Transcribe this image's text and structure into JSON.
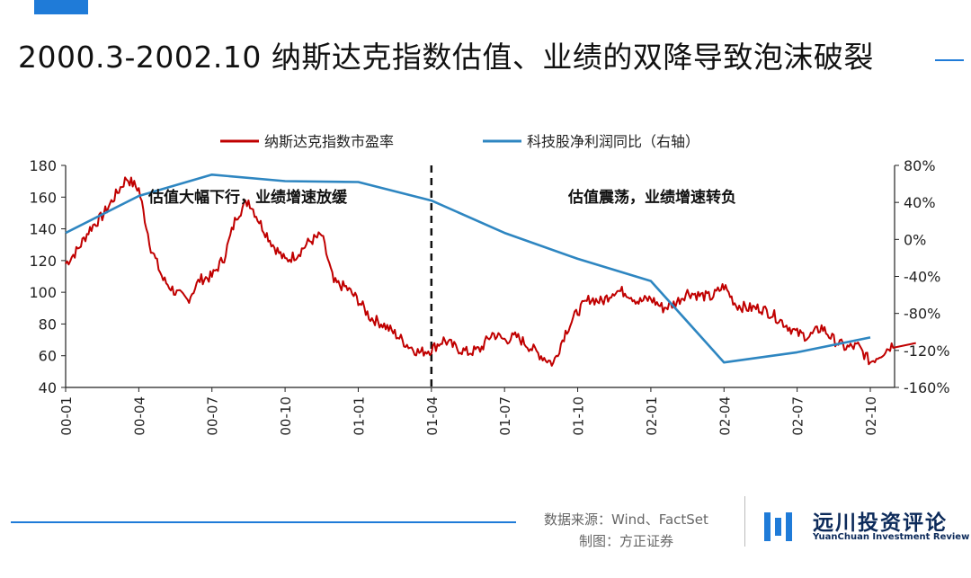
{
  "page": {
    "title": "2000.3-2002.10 纳斯达克指数估值、业绩的双降导致泡沫破裂"
  },
  "footer": {
    "source": "数据来源：Wind、FactSet",
    "maker": "制图：方正证券",
    "brand_name": "远川投资评论",
    "brand_sub": "YuanChuan Investment Review"
  },
  "colors": {
    "accent": "#1f7bd8",
    "pe_series": "#c00000",
    "growth_series": "#2e86c1",
    "brand": "#0c2a5a"
  },
  "chart_data": {
    "type": "line",
    "x_tick_labels": [
      "00-01",
      "00-04",
      "00-07",
      "00-10",
      "01-01",
      "01-04",
      "01-07",
      "01-10",
      "02-01",
      "02-04",
      "02-07",
      "02-10"
    ],
    "left_axis": {
      "ylim": [
        40,
        180
      ],
      "ticks": [
        40,
        60,
        80,
        100,
        120,
        140,
        160,
        180
      ]
    },
    "right_axis": {
      "ylim": [
        -160,
        80
      ],
      "ticks": [
        "80%",
        "40%",
        "0%",
        "-40%",
        "-80%",
        "-120%",
        "-160%"
      ]
    },
    "grid": false,
    "legend_position": "top",
    "annotations": [
      {
        "text": "估值大幅下行，业绩增速放缓",
        "x": "00-05"
      },
      {
        "text": "估值震荡，业绩增速转负",
        "x": "01-06"
      }
    ],
    "divider_x": "01-04",
    "series": [
      {
        "name": "纳斯达克指数市盈率",
        "axis": "left",
        "x": [
          "00-01",
          "00-01",
          "00-02",
          "00-02",
          "00-03",
          "00-03",
          "00-04",
          "00-04",
          "00-05",
          "00-05",
          "00-06",
          "00-06",
          "00-07",
          "00-07",
          "00-08",
          "00-08",
          "00-09",
          "00-09",
          "00-10",
          "00-10",
          "00-11",
          "00-11",
          "00-12",
          "00-12",
          "01-01",
          "01-01",
          "01-02",
          "01-02",
          "01-03",
          "01-03",
          "01-04",
          "01-04",
          "01-05",
          "01-05",
          "01-06",
          "01-06",
          "01-07",
          "01-07",
          "01-08",
          "01-08",
          "01-09",
          "01-09",
          "01-10",
          "01-10",
          "01-11",
          "01-11",
          "01-12",
          "01-12",
          "02-01",
          "02-01",
          "02-02",
          "02-02",
          "02-03",
          "02-03",
          "02-04",
          "02-04",
          "02-05",
          "02-05",
          "02-06",
          "02-06",
          "02-07",
          "02-07",
          "02-08",
          "02-08",
          "02-09",
          "02-09",
          "02-10",
          "02-10",
          "02-11"
        ],
        "values": [
          118,
          127,
          140,
          148,
          160,
          172,
          165,
          128,
          108,
          100,
          95,
          108,
          110,
          122,
          148,
          158,
          143,
          130,
          120,
          124,
          132,
          136,
          106,
          103,
          95,
          84,
          80,
          74,
          67,
          62,
          64,
          70,
          65,
          62,
          64,
          74,
          70,
          72,
          66,
          60,
          55,
          75,
          88,
          96,
          94,
          101,
          100,
          94,
          96,
          90,
          93,
          100,
          98,
          97,
          104,
          92,
          90,
          90,
          86,
          80,
          74,
          72,
          78,
          70,
          65,
          66,
          56,
          62,
          68
        ]
      },
      {
        "name": "科技股净利润同比（右轴）",
        "axis": "right",
        "x": [
          "00-01",
          "00-04",
          "00-07",
          "00-10",
          "01-01",
          "01-04",
          "01-07",
          "01-10",
          "02-01",
          "02-04",
          "02-07",
          "02-10"
        ],
        "values": [
          7,
          47,
          70,
          63,
          62,
          42,
          7,
          -21,
          -45,
          -133,
          -122,
          -106
        ]
      }
    ]
  }
}
